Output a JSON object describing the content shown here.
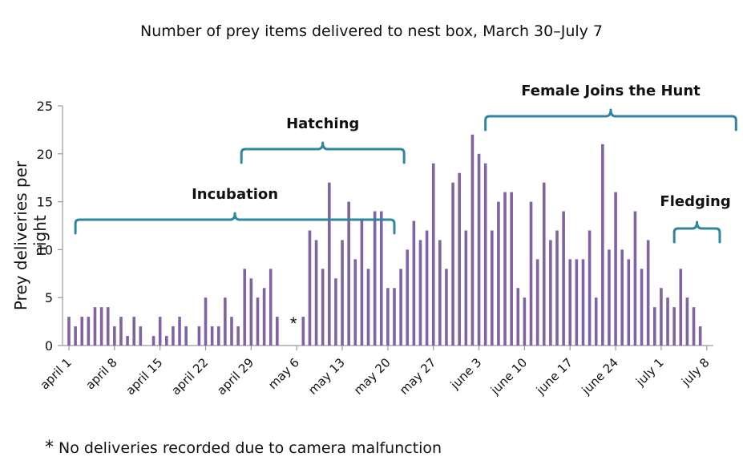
{
  "chart_data": {
    "type": "bar",
    "title": "Number of prey items delivered to nest box, March 30–July 7",
    "ylabel": "Prey deliveries per night",
    "xlabel": "",
    "ylim": [
      0,
      25
    ],
    "yticks": [
      0,
      5,
      10,
      15,
      20,
      25
    ],
    "grid": false,
    "bar_color": "#8064a2",
    "bracket_color": "#31859c",
    "xtick_labels": [
      {
        "label": "april 1",
        "day": 0
      },
      {
        "label": "april 8",
        "day": 7
      },
      {
        "label": "april 15",
        "day": 14
      },
      {
        "label": "april 22",
        "day": 21
      },
      {
        "label": "april 29",
        "day": 28
      },
      {
        "label": "may 6",
        "day": 35
      },
      {
        "label": "may 13",
        "day": 42
      },
      {
        "label": "may 20",
        "day": 49
      },
      {
        "label": "may 27",
        "day": 56
      },
      {
        "label": "june 3",
        "day": 63
      },
      {
        "label": "june 10",
        "day": 70
      },
      {
        "label": "june 17",
        "day": 77
      },
      {
        "label": "june 24",
        "day": 84
      },
      {
        "label": "july 1",
        "day": 91
      },
      {
        "label": "july 8",
        "day": 98
      }
    ],
    "values": [
      3,
      2,
      3,
      3,
      4,
      4,
      4,
      2,
      3,
      1,
      3,
      2,
      null,
      1,
      3,
      1,
      2,
      3,
      2,
      null,
      2,
      5,
      2,
      2,
      5,
      3,
      2,
      8,
      7,
      5,
      6,
      8,
      3,
      null,
      null,
      null,
      3,
      12,
      11,
      8,
      17,
      7,
      11,
      15,
      9,
      13,
      8,
      14,
      14,
      6,
      6,
      8,
      10,
      13,
      11,
      12,
      19,
      11,
      8,
      17,
      18,
      12,
      22,
      20,
      19,
      12,
      15,
      16,
      16,
      6,
      5,
      15,
      9,
      17,
      11,
      12,
      14,
      9,
      9,
      9,
      12,
      5,
      21,
      10,
      16,
      10,
      9,
      14,
      8,
      11,
      4,
      6,
      5,
      4,
      8,
      5,
      4,
      2
    ],
    "annotations": [
      {
        "label": "Incubation",
        "start_day": 1,
        "end_day": 50
      },
      {
        "label": "Hatching",
        "start_day": 26.5,
        "end_day": 51.5
      },
      {
        "label": "Female Joins the Hunt",
        "start_day": 64,
        "end_day": 102.5
      },
      {
        "label": "Fledging",
        "start_day": 93,
        "end_day": 100
      }
    ],
    "gap_marker": {
      "symbol": "*",
      "day": 34.5
    }
  },
  "footnote": {
    "symbol": "*",
    "text": "No deliveries recorded due to camera malfunction"
  }
}
